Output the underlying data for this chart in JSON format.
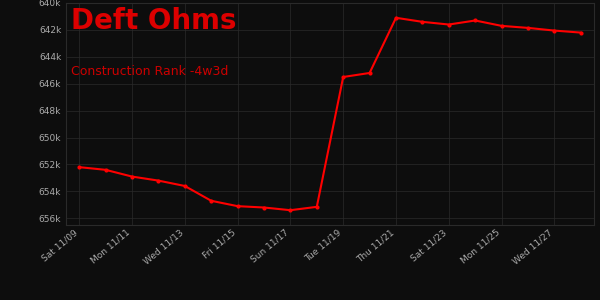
{
  "title": "Deft Ohms",
  "subtitle": "Construction Rank -4w3d",
  "title_color": "#dd0000",
  "subtitle_color": "#cc0000",
  "bg_color": "#0d0d0d",
  "plot_bg_color": "#0d0d0d",
  "line_color": "#ff0000",
  "grid_color": "#2a2a2a",
  "tick_color": "#aaaaaa",
  "x_labels": [
    "Sat 11/09",
    "Mon 11/11",
    "Wed 11/13",
    "Fri 11/15",
    "Sun 11/17",
    "Tue 11/19",
    "Thu 11/21",
    "Sat 11/23",
    "Mon 11/25",
    "Wed 11/27"
  ],
  "x_positions": [
    0,
    2,
    4,
    6,
    8,
    10,
    12,
    14,
    16,
    18
  ],
  "y_data": [
    [
      0,
      652200
    ],
    [
      1,
      652400
    ],
    [
      2,
      652900
    ],
    [
      3,
      653200
    ],
    [
      4,
      653600
    ],
    [
      5,
      654700
    ],
    [
      6,
      655100
    ],
    [
      7,
      655200
    ],
    [
      8,
      655400
    ],
    [
      9,
      655150
    ],
    [
      10,
      645500
    ],
    [
      11,
      645200
    ],
    [
      12,
      641100
    ],
    [
      13,
      641400
    ],
    [
      14,
      641600
    ],
    [
      15,
      641300
    ],
    [
      16,
      641700
    ],
    [
      17,
      641850
    ],
    [
      18,
      642050
    ],
    [
      19,
      642200
    ]
  ],
  "ylim_min": 640000,
  "ylim_max": 656500,
  "yticks": [
    640000,
    642000,
    644000,
    646000,
    648000,
    650000,
    652000,
    654000,
    656000
  ]
}
